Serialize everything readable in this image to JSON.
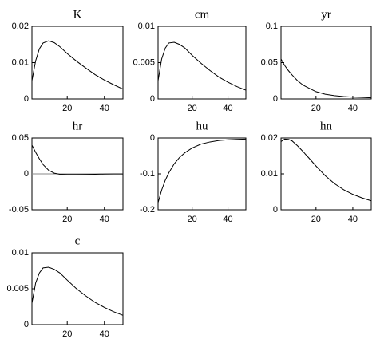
{
  "chart_data": [
    {
      "type": "line",
      "title": "K",
      "x": [
        1,
        3,
        5,
        7,
        10,
        13,
        16,
        20,
        25,
        30,
        35,
        40,
        45,
        50
      ],
      "values": [
        0.005,
        0.0105,
        0.0138,
        0.0154,
        0.016,
        0.0155,
        0.0144,
        0.0125,
        0.0104,
        0.0085,
        0.0067,
        0.0052,
        0.0039,
        0.0027
      ],
      "xlim": [
        1,
        50
      ],
      "xticks": [
        20,
        40
      ],
      "ylim": [
        0,
        0.02
      ],
      "yticks": [
        0,
        0.01,
        0.02
      ],
      "color": "#000000"
    },
    {
      "type": "line",
      "title": "cm",
      "x": [
        1,
        3,
        5,
        7,
        10,
        13,
        16,
        20,
        25,
        30,
        35,
        40,
        45,
        50
      ],
      "values": [
        0.0025,
        0.0055,
        0.007,
        0.0077,
        0.0078,
        0.0075,
        0.007,
        0.006,
        0.0049,
        0.0039,
        0.003,
        0.0023,
        0.0017,
        0.0012
      ],
      "xlim": [
        1,
        50
      ],
      "xticks": [
        20,
        40
      ],
      "ylim": [
        0,
        0.01
      ],
      "yticks": [
        0,
        0.005,
        0.01
      ],
      "color": "#000000"
    },
    {
      "type": "line",
      "title": "yr",
      "x": [
        1,
        3,
        5,
        7,
        10,
        13,
        16,
        20,
        25,
        30,
        35,
        40,
        45,
        50
      ],
      "values": [
        0.055,
        0.046,
        0.039,
        0.033,
        0.025,
        0.019,
        0.015,
        0.01,
        0.0065,
        0.0045,
        0.0033,
        0.0025,
        0.002,
        0.0015
      ],
      "xlim": [
        1,
        50
      ],
      "xticks": [
        20,
        40
      ],
      "ylim": [
        0,
        0.1
      ],
      "yticks": [
        0,
        0.05,
        0.1
      ],
      "color": "#000000"
    },
    {
      "type": "line",
      "title": "hr",
      "x": [
        1,
        3,
        5,
        7,
        10,
        13,
        16,
        20,
        25,
        30,
        35,
        40,
        45,
        50
      ],
      "values": [
        0.04,
        0.03,
        0.021,
        0.013,
        0.005,
        0.001,
        -0.0005,
        -0.001,
        -0.001,
        -0.0008,
        -0.0005,
        -0.0003,
        -0.0002,
        -0.0001
      ],
      "xlim": [
        1,
        50
      ],
      "xticks": [
        20,
        40
      ],
      "ylim": [
        -0.05,
        0.05
      ],
      "yticks": [
        -0.05,
        0,
        0.05
      ],
      "hline": 0,
      "color": "#000000"
    },
    {
      "type": "line",
      "title": "hu",
      "x": [
        1,
        3,
        5,
        7,
        10,
        13,
        16,
        20,
        25,
        30,
        35,
        40,
        45,
        50
      ],
      "values": [
        -0.18,
        -0.145,
        -0.118,
        -0.097,
        -0.072,
        -0.054,
        -0.041,
        -0.028,
        -0.017,
        -0.011,
        -0.007,
        -0.005,
        -0.004,
        -0.003
      ],
      "xlim": [
        1,
        50
      ],
      "xticks": [
        20,
        40
      ],
      "ylim": [
        -0.2,
        0
      ],
      "yticks": [
        -0.2,
        -0.1,
        0
      ],
      "color": "#000000"
    },
    {
      "type": "line",
      "title": "hn",
      "x": [
        1,
        3,
        5,
        7,
        10,
        13,
        16,
        20,
        25,
        30,
        35,
        40,
        45,
        50
      ],
      "values": [
        0.019,
        0.0197,
        0.0196,
        0.0192,
        0.0178,
        0.0162,
        0.0145,
        0.0122,
        0.0095,
        0.0073,
        0.0056,
        0.0043,
        0.0033,
        0.0025
      ],
      "xlim": [
        1,
        50
      ],
      "xticks": [
        20,
        40
      ],
      "ylim": [
        0,
        0.02
      ],
      "yticks": [
        0,
        0.01,
        0.02
      ],
      "color": "#000000"
    },
    {
      "type": "line",
      "title": "c",
      "x": [
        1,
        3,
        5,
        7,
        10,
        13,
        16,
        20,
        25,
        30,
        35,
        40,
        45,
        50
      ],
      "values": [
        0.003,
        0.0058,
        0.0072,
        0.0079,
        0.008,
        0.0077,
        0.0072,
        0.0062,
        0.005,
        0.004,
        0.0031,
        0.0024,
        0.0018,
        0.0013
      ],
      "xlim": [
        1,
        50
      ],
      "xticks": [
        20,
        40
      ],
      "ylim": [
        0,
        0.01
      ],
      "yticks": [
        0,
        0.005,
        0.01
      ],
      "color": "#000000"
    }
  ]
}
